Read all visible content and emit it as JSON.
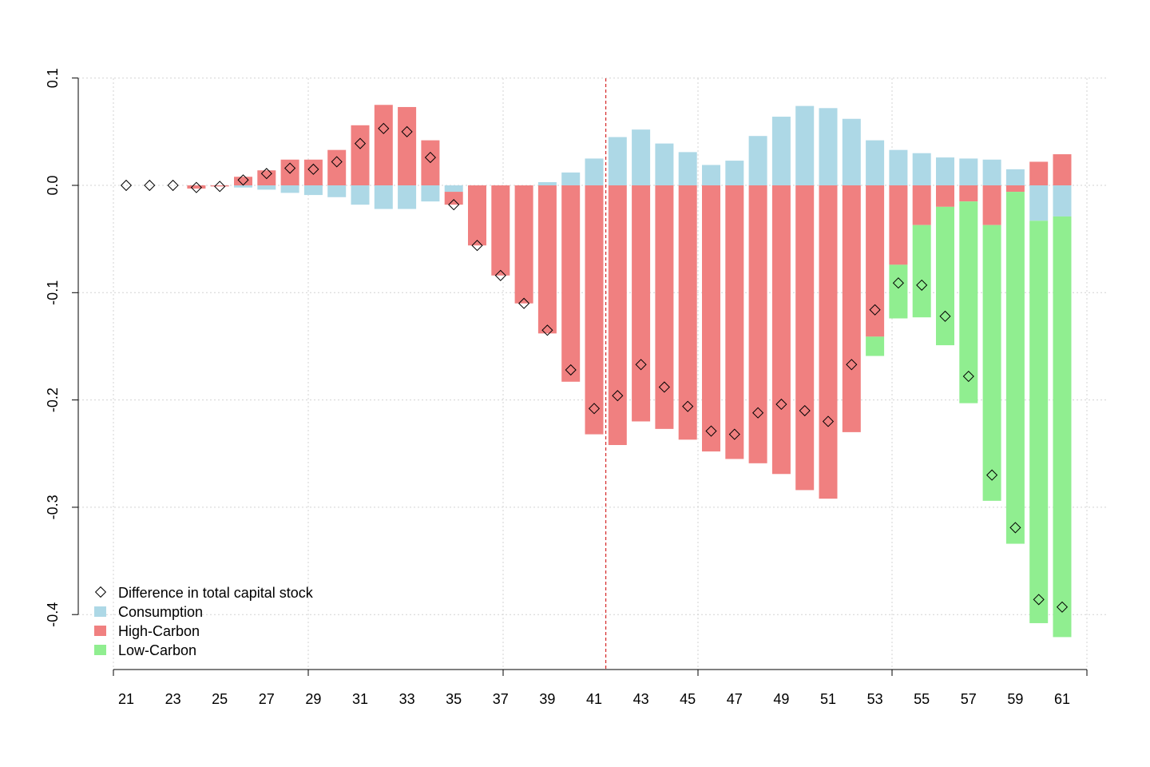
{
  "chart_data": {
    "type": "bar",
    "stacked": true,
    "title": "",
    "xlabel": "",
    "ylabel": "",
    "ylim": [
      -0.4,
      0.1
    ],
    "yticks": [
      0.1,
      0.0,
      -0.1,
      -0.2,
      -0.3,
      -0.4
    ],
    "ytick_labels": [
      "0.1",
      "0.0",
      "-0.1",
      "-0.2",
      "-0.3",
      "-0.4"
    ],
    "grid": true,
    "legend_position": "bottom-left",
    "categories": [
      21,
      22,
      23,
      24,
      25,
      26,
      27,
      28,
      29,
      30,
      31,
      32,
      33,
      34,
      35,
      36,
      37,
      38,
      39,
      40,
      41,
      42,
      43,
      44,
      45,
      46,
      47,
      48,
      49,
      50,
      51,
      52,
      53,
      54,
      55,
      56,
      57,
      58,
      59,
      60,
      61
    ],
    "xtick_labels": [
      "21",
      "23",
      "25",
      "27",
      "29",
      "31",
      "33",
      "35",
      "37",
      "39",
      "41",
      "43",
      "45",
      "47",
      "49",
      "51",
      "53",
      "55",
      "57",
      "59",
      "61"
    ],
    "vertical_line_x": 41.5,
    "series": [
      {
        "name": "Consumption",
        "color": "#add8e6",
        "values": [
          0,
          0,
          0,
          0,
          0,
          -0.002,
          -0.004,
          -0.007,
          -0.009,
          -0.011,
          -0.018,
          -0.022,
          -0.022,
          -0.015,
          -0.006,
          0,
          0,
          0,
          0.003,
          0.012,
          0.025,
          0.045,
          0.052,
          0.039,
          0.031,
          0.019,
          0.023,
          0.046,
          0.064,
          0.074,
          0.072,
          0.062,
          0.042,
          0.033,
          0.03,
          0.026,
          0.025,
          0.024,
          0.015,
          -0.033,
          -0.029
        ]
      },
      {
        "name": "High-Carbon",
        "color": "#f08080",
        "values": [
          0,
          0,
          0,
          -0.003,
          -0.001,
          0.008,
          0.014,
          0.024,
          0.024,
          0.033,
          0.056,
          0.075,
          0.073,
          0.042,
          -0.012,
          -0.056,
          -0.084,
          -0.11,
          -0.138,
          -0.183,
          -0.232,
          -0.242,
          -0.22,
          -0.227,
          -0.237,
          -0.248,
          -0.255,
          -0.259,
          -0.269,
          -0.284,
          -0.292,
          -0.23,
          -0.141,
          -0.074,
          -0.037,
          -0.02,
          -0.015,
          -0.037,
          -0.006,
          0.022,
          0.029
        ]
      },
      {
        "name": "Low-Carbon",
        "color": "#90ee90",
        "values": [
          0,
          0,
          0,
          0,
          0,
          0,
          0,
          0,
          0,
          0,
          0,
          0,
          0,
          0,
          0,
          0,
          0,
          0,
          0,
          0,
          0,
          0,
          0,
          0,
          0,
          0,
          0,
          0,
          0,
          0,
          0,
          0,
          -0.018,
          -0.05,
          -0.086,
          -0.129,
          -0.188,
          -0.257,
          -0.328,
          -0.375,
          -0.392
        ]
      }
    ],
    "markers": {
      "name": "Difference in total capital stock",
      "values": [
        0,
        0,
        0,
        -0.002,
        -0.001,
        0.005,
        0.011,
        0.016,
        0.015,
        0.022,
        0.039,
        0.053,
        0.05,
        0.026,
        -0.018,
        -0.056,
        -0.084,
        -0.11,
        -0.135,
        -0.172,
        -0.208,
        -0.196,
        -0.167,
        -0.188,
        -0.206,
        -0.229,
        -0.232,
        -0.212,
        -0.204,
        -0.21,
        -0.22,
        -0.167,
        -0.116,
        -0.091,
        -0.093,
        -0.122,
        -0.178,
        -0.27,
        -0.319,
        -0.386,
        -0.393
      ]
    }
  },
  "legend": {
    "items": [
      {
        "label": "Difference in total capital stock",
        "symbol": "diamond"
      },
      {
        "label": "Consumption",
        "symbol": "box",
        "color": "#add8e6"
      },
      {
        "label": "High-Carbon",
        "symbol": "box",
        "color": "#f08080"
      },
      {
        "label": "Low-Carbon",
        "symbol": "box",
        "color": "#90ee90"
      }
    ]
  }
}
